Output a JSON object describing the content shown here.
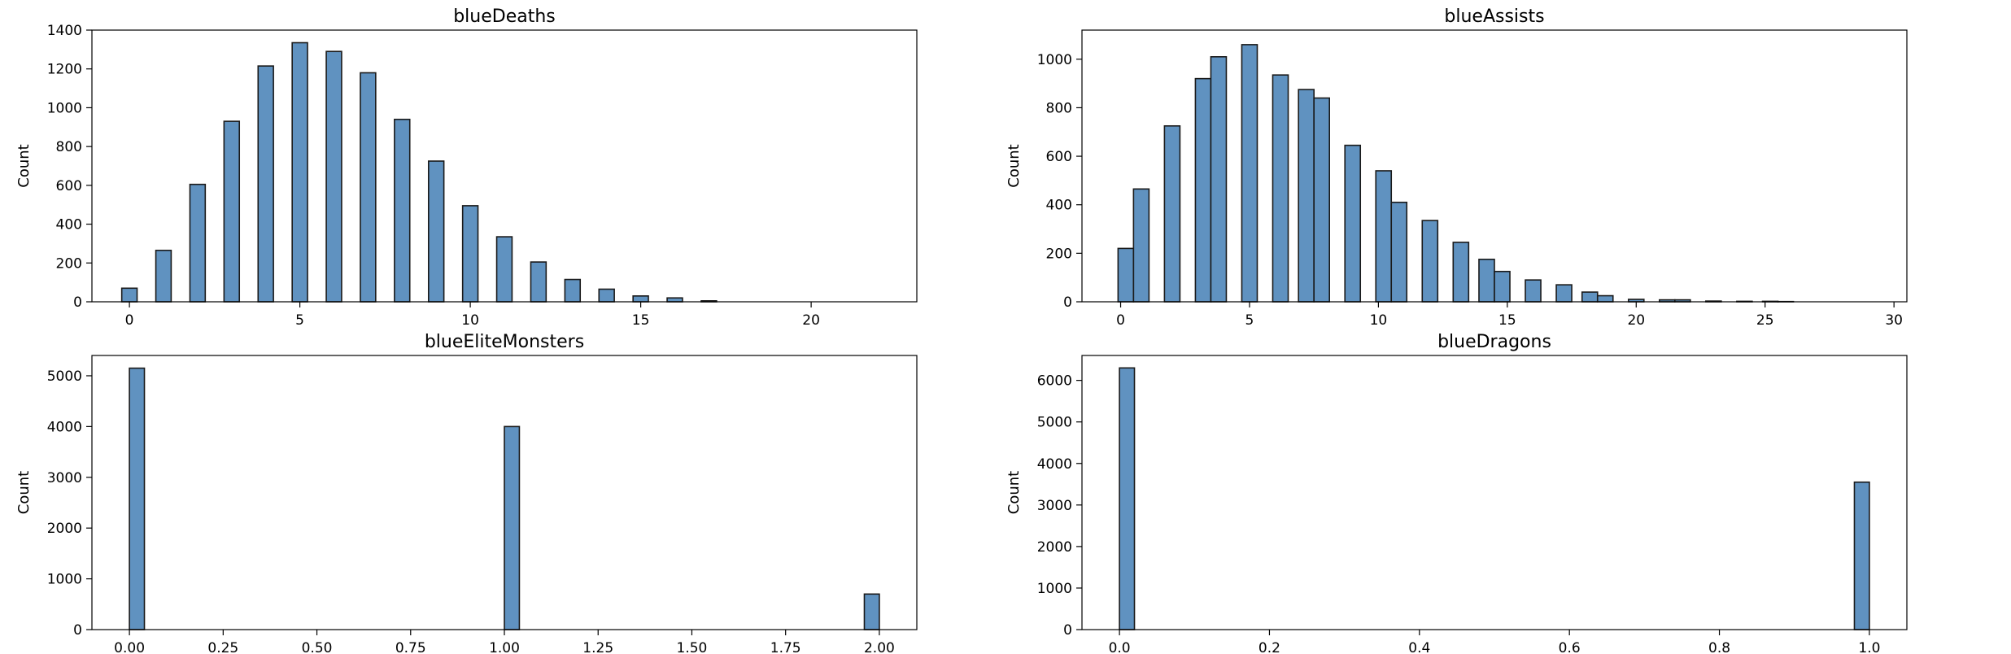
{
  "colors": {
    "bar_fill": "#6092c0",
    "bar_edge": "#1a1a1a",
    "axes": "#000000"
  },
  "chart_data": [
    {
      "type": "bar",
      "title": "blueDeaths",
      "xlabel": "",
      "ylabel": "Count",
      "xlim": [
        -1.1,
        23.1
      ],
      "ylim": [
        0,
        1400
      ],
      "bar_width": 0.45,
      "xticks": [
        {
          "v": 0,
          "t": "0"
        },
        {
          "v": 5,
          "t": "5"
        },
        {
          "v": 10,
          "t": "10"
        },
        {
          "v": 15,
          "t": "15"
        },
        {
          "v": 20,
          "t": "20"
        }
      ],
      "yticks": [
        {
          "v": 0,
          "t": "0"
        },
        {
          "v": 200,
          "t": "200"
        },
        {
          "v": 400,
          "t": "400"
        },
        {
          "v": 600,
          "t": "600"
        },
        {
          "v": 800,
          "t": "800"
        },
        {
          "v": 1000,
          "t": "1000"
        },
        {
          "v": 1200,
          "t": "1200"
        },
        {
          "v": 1400,
          "t": "1400"
        }
      ],
      "x": [
        0,
        1,
        2,
        3,
        4,
        5,
        6,
        7,
        8,
        9,
        10,
        11,
        12,
        13,
        14,
        15,
        16,
        17
      ],
      "values": [
        70,
        265,
        605,
        930,
        1215,
        1335,
        1290,
        1180,
        940,
        725,
        495,
        335,
        205,
        115,
        65,
        30,
        20,
        5
      ]
    },
    {
      "type": "bar",
      "title": "blueAssists",
      "xlabel": "",
      "ylabel": "Count",
      "xlim": [
        -1.5,
        30.5
      ],
      "ylim": [
        0,
        1120
      ],
      "bar_width": 0.6,
      "xticks": [
        {
          "v": 0,
          "t": "0"
        },
        {
          "v": 5,
          "t": "5"
        },
        {
          "v": 10,
          "t": "10"
        },
        {
          "v": 15,
          "t": "15"
        },
        {
          "v": 20,
          "t": "20"
        },
        {
          "v": 25,
          "t": "25"
        },
        {
          "v": 30,
          "t": "30"
        }
      ],
      "yticks": [
        {
          "v": 0,
          "t": "0"
        },
        {
          "v": 200,
          "t": "200"
        },
        {
          "v": 400,
          "t": "400"
        },
        {
          "v": 600,
          "t": "600"
        },
        {
          "v": 800,
          "t": "800"
        },
        {
          "v": 1000,
          "t": "1000"
        }
      ],
      "x": [
        0.2,
        0.8,
        2,
        3.2,
        3.8,
        5,
        6.2,
        7.2,
        7.8,
        9,
        10.2,
        10.8,
        12,
        13.2,
        14.2,
        14.8,
        16,
        17.2,
        18.2,
        18.8,
        20,
        21.2,
        21.8,
        23,
        24.2,
        25.2,
        25.8
      ],
      "values": [
        220,
        465,
        725,
        920,
        1010,
        1060,
        935,
        875,
        840,
        645,
        540,
        410,
        335,
        245,
        175,
        125,
        90,
        70,
        40,
        25,
        10,
        8,
        8,
        3,
        2,
        2,
        1
      ]
    },
    {
      "type": "bar",
      "title": "blueEliteMonsters",
      "xlabel": "",
      "ylabel": "Count",
      "xlim": [
        -0.1,
        2.1
      ],
      "ylim": [
        0,
        5400
      ],
      "bar_width": 0.04,
      "xticks": [
        {
          "v": 0,
          "t": "0.00"
        },
        {
          "v": 0.25,
          "t": "0.25"
        },
        {
          "v": 0.5,
          "t": "0.50"
        },
        {
          "v": 0.75,
          "t": "0.75"
        },
        {
          "v": 1,
          "t": "1.00"
        },
        {
          "v": 1.25,
          "t": "1.25"
        },
        {
          "v": 1.5,
          "t": "1.50"
        },
        {
          "v": 1.75,
          "t": "1.75"
        },
        {
          "v": 2,
          "t": "2.00"
        }
      ],
      "yticks": [
        {
          "v": 0,
          "t": "0"
        },
        {
          "v": 1000,
          "t": "1000"
        },
        {
          "v": 2000,
          "t": "2000"
        },
        {
          "v": 3000,
          "t": "3000"
        },
        {
          "v": 4000,
          "t": "4000"
        },
        {
          "v": 5000,
          "t": "5000"
        }
      ],
      "x": [
        0.02,
        1.02,
        1.98
      ],
      "values": [
        5150,
        4000,
        700
      ]
    },
    {
      "type": "bar",
      "title": "blueDragons",
      "xlabel": "",
      "ylabel": "Count",
      "xlim": [
        -0.05,
        1.05
      ],
      "ylim": [
        0,
        6600
      ],
      "bar_width": 0.02,
      "xticks": [
        {
          "v": 0,
          "t": "0.0"
        },
        {
          "v": 0.2,
          "t": "0.2"
        },
        {
          "v": 0.4,
          "t": "0.4"
        },
        {
          "v": 0.6,
          "t": "0.6"
        },
        {
          "v": 0.8,
          "t": "0.8"
        },
        {
          "v": 1,
          "t": "1.0"
        }
      ],
      "yticks": [
        {
          "v": 0,
          "t": "0"
        },
        {
          "v": 1000,
          "t": "1000"
        },
        {
          "v": 2000,
          "t": "2000"
        },
        {
          "v": 3000,
          "t": "3000"
        },
        {
          "v": 4000,
          "t": "4000"
        },
        {
          "v": 5000,
          "t": "5000"
        },
        {
          "v": 6000,
          "t": "6000"
        }
      ],
      "x": [
        0.01,
        0.99
      ],
      "values": [
        6300,
        3550
      ]
    }
  ]
}
